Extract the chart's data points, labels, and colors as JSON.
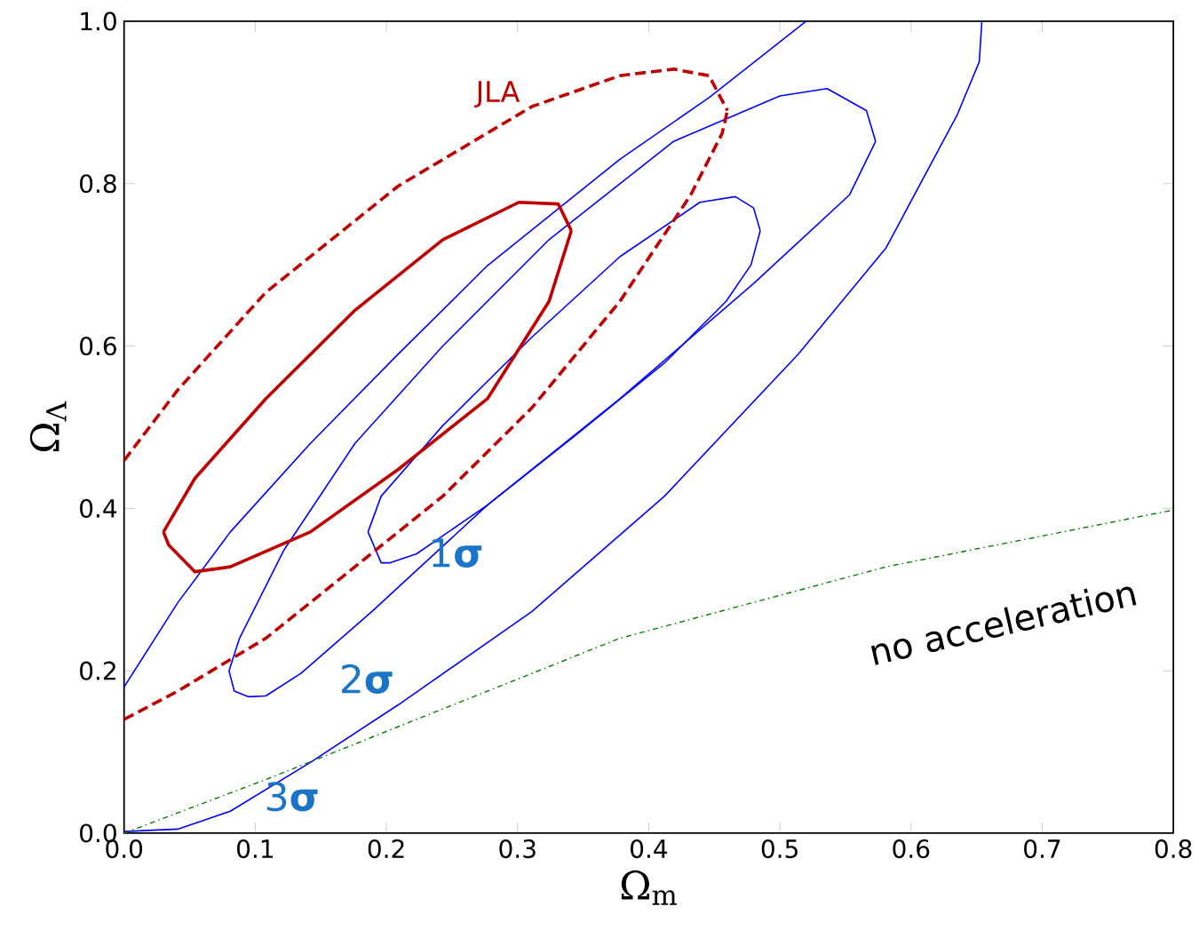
{
  "chart_data": {
    "type": "line",
    "xlabel": "Ω$_{m}$",
    "ylabel": "Ω$_{Λ}$",
    "xlim": [
      0,
      0.8
    ],
    "ylim": [
      0,
      1.0
    ],
    "xticks": [
      {
        "value": 0,
        "label": "0.0"
      },
      0.1,
      0.2,
      0.3,
      0.4,
      0.5,
      0.6,
      0.7,
      0.8
    ],
    "yticks": [
      {
        "value": 0,
        "label": "0.0"
      },
      0.2,
      0.4,
      0.6,
      0.8,
      {
        "value": 1,
        "label": "1.0"
      }
    ],
    "series": [
      {
        "color": "#0000ff",
        "line_style": "solid",
        "x": [
          0.186,
          0.196,
          0.203,
          0.223,
          0.277,
          0.345,
          0.412,
          0.459,
          0.478,
          0.485
        ],
        "values": [
          0.371,
          0.333,
          0.333,
          0.344,
          0.404,
          0.491,
          0.579,
          0.655,
          0.7,
          0.742
        ]
      },
      {
        "color": "#0000ff",
        "line_style": "solid",
        "x": [
          0.186,
          0.196,
          0.243,
          0.311,
          0.378,
          0.439,
          0.466,
          0.48,
          0.485
        ],
        "values": [
          0.371,
          0.415,
          0.502,
          0.611,
          0.71,
          0.777,
          0.784,
          0.77,
          0.742
        ]
      },
      {
        "color": "#0000ff",
        "line_style": "solid",
        "x": [
          0.08,
          0.084,
          0.095,
          0.108,
          0.135,
          0.189,
          0.277,
          0.378,
          0.48,
          0.553,
          0.573
        ],
        "values": [
          0.2,
          0.175,
          0.168,
          0.169,
          0.197,
          0.273,
          0.404,
          0.535,
          0.677,
          0.786,
          0.852
        ]
      },
      {
        "color": "#0000ff",
        "line_style": "solid",
        "x": [
          0.08,
          0.088,
          0.122,
          0.176,
          0.243,
          0.324,
          0.419,
          0.5,
          0.536,
          0.566,
          0.573
        ],
        "values": [
          0.2,
          0.24,
          0.349,
          0.48,
          0.6,
          0.731,
          0.852,
          0.908,
          0.917,
          0.89,
          0.852
        ]
      },
      {
        "color": "#0000ff",
        "line_style": "solid",
        "x": [
          0.0,
          0.041,
          0.081,
          0.142,
          0.209,
          0.311,
          0.412,
          0.514,
          0.581,
          0.635,
          0.652,
          0.654
        ],
        "values": [
          0.002,
          0.005,
          0.027,
          0.087,
          0.158,
          0.273,
          0.415,
          0.59,
          0.721,
          0.884,
          0.95,
          1.0
        ]
      },
      {
        "color": "#0000ff",
        "line_style": "solid",
        "x": [
          0.0,
          0.041,
          0.081,
          0.142,
          0.209,
          0.277,
          0.378,
          0.446,
          0.52
        ],
        "values": [
          0.18,
          0.284,
          0.371,
          0.48,
          0.59,
          0.699,
          0.83,
          0.906,
          1.0
        ]
      },
      {
        "color": "#c00000",
        "line_style": "solid",
        "x": [
          0.03,
          0.034,
          0.054,
          0.081,
          0.142,
          0.209,
          0.277,
          0.324,
          0.341
        ],
        "values": [
          0.371,
          0.355,
          0.322,
          0.328,
          0.371,
          0.448,
          0.535,
          0.655,
          0.742
        ]
      },
      {
        "color": "#c00000",
        "line_style": "solid",
        "x": [
          0.03,
          0.054,
          0.108,
          0.176,
          0.243,
          0.301,
          0.331,
          0.341
        ],
        "values": [
          0.371,
          0.437,
          0.535,
          0.644,
          0.731,
          0.777,
          0.775,
          0.742
        ]
      },
      {
        "color": "#c00000",
        "line_style": "dashed",
        "x": [
          0.0,
          0.041,
          0.108,
          0.176,
          0.243,
          0.311,
          0.378,
          0.432,
          0.456,
          0.46
        ],
        "values": [
          0.14,
          0.175,
          0.24,
          0.328,
          0.415,
          0.524,
          0.655,
          0.786,
          0.862,
          0.89
        ]
      },
      {
        "color": "#c00000",
        "line_style": "dashed",
        "x": [
          0.0,
          0.041,
          0.108,
          0.209,
          0.311,
          0.378,
          0.419,
          0.446,
          0.46
        ],
        "values": [
          0.459,
          0.546,
          0.666,
          0.797,
          0.895,
          0.933,
          0.941,
          0.933,
          0.89
        ]
      },
      {
        "color": "#008000",
        "line_style": "dotted",
        "x": [
          0.0,
          0.108,
          0.243,
          0.378,
          0.581,
          0.8
        ],
        "values": [
          0.0,
          0.066,
          0.153,
          0.24,
          0.328,
          0.398
        ]
      }
    ],
    "annotations": [
      "JLA",
      "1**σ**",
      "2**σ**",
      "3**σ**",
      "no acceleration"
    ]
  }
}
